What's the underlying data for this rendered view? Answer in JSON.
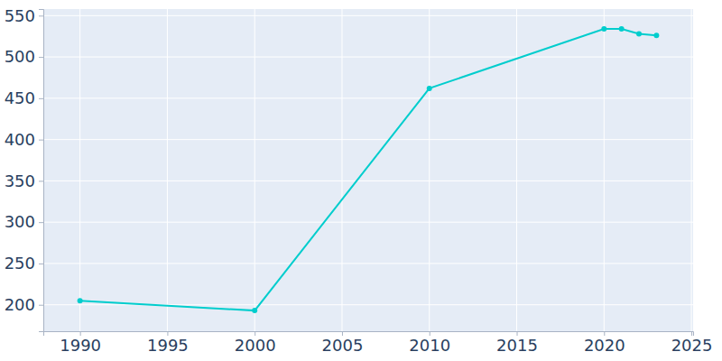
{
  "chart_data": {
    "type": "line",
    "x": [
      1990,
      2000,
      2010,
      2020,
      2021,
      2022,
      2023
    ],
    "values": [
      205,
      193,
      462,
      534,
      534,
      528,
      526
    ],
    "color": "#00cdcd",
    "marker": "circle",
    "xlim": [
      1987.9,
      2025.1
    ],
    "xticks": [
      1990,
      1995,
      2000,
      2005,
      2010,
      2015,
      2020,
      2025
    ],
    "ylim": [
      168,
      558
    ],
    "yticks": [
      200,
      250,
      300,
      350,
      400,
      450,
      500,
      550
    ],
    "grid": true
  }
}
